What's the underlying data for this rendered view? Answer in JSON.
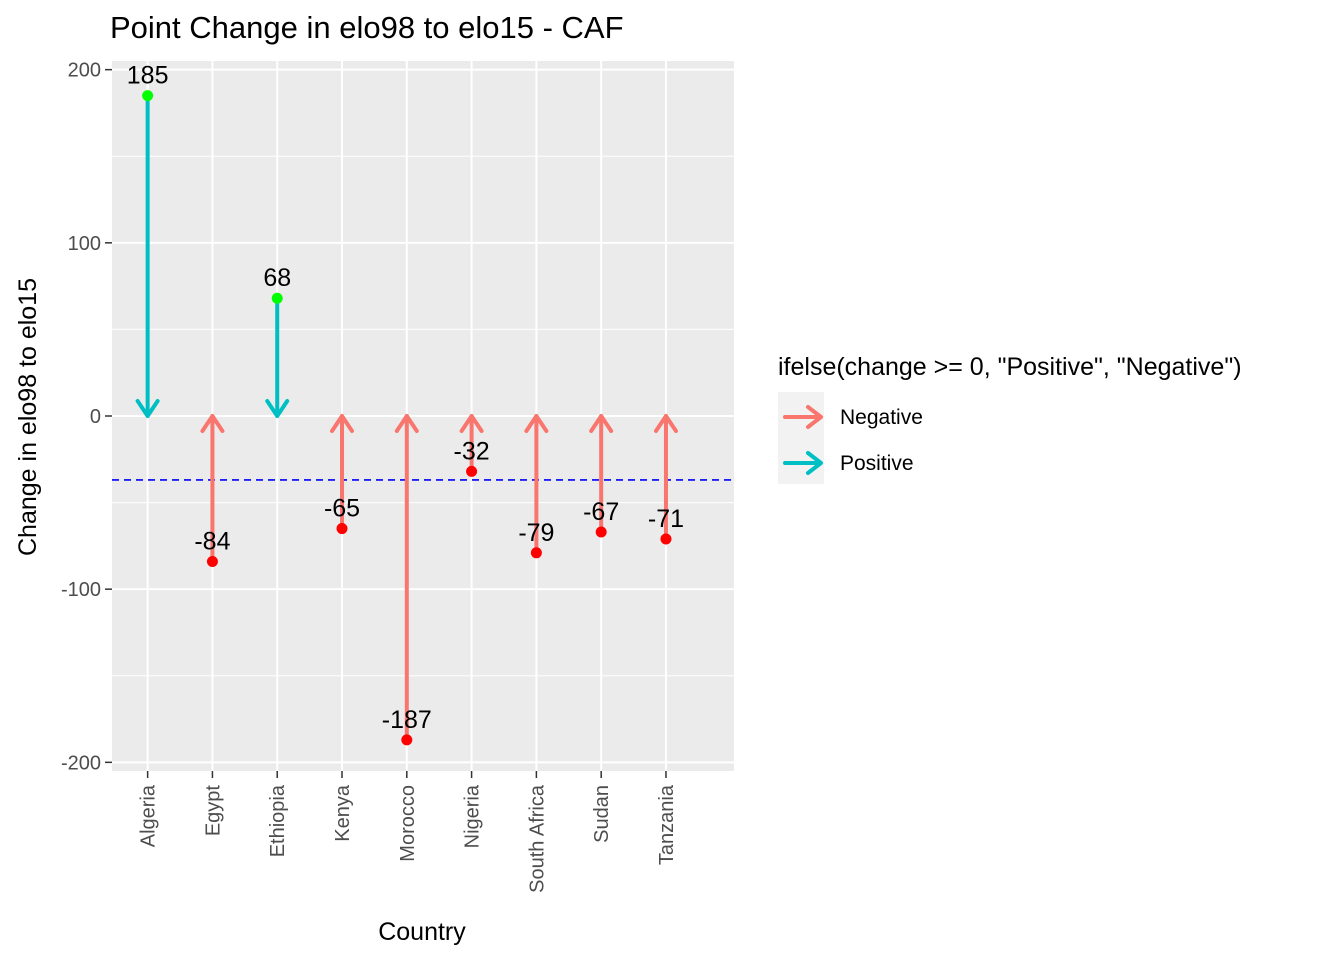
{
  "chart_data": {
    "type": "arrow-dot",
    "title": "Point Change in elo98 to elo15 - CAF",
    "xlabel": "Country",
    "ylabel": "Change in elo98 to elo15",
    "categories": [
      "Algeria",
      "Egypt",
      "Ethiopia",
      "Kenya",
      "Morocco",
      "Nigeria",
      "South Africa",
      "Sudan",
      "Tanzania"
    ],
    "values": [
      185,
      -84,
      68,
      -65,
      -187,
      -32,
      -79,
      -67,
      -71
    ],
    "labels": [
      "185",
      "-84",
      "68",
      "-65",
      "-187",
      "-32",
      "-79",
      "-67",
      "-71"
    ],
    "ylim": [
      -205,
      205
    ],
    "yticks": [
      200,
      100,
      0,
      -100,
      -200
    ],
    "ytick_labels": [
      "200",
      "100",
      "0",
      "-100",
      "-200"
    ],
    "reference_line": {
      "value": -36.9,
      "style": "dashed",
      "color": "#0000ff"
    },
    "grid": true,
    "panel_background": "#ebebeb",
    "legend": {
      "title": "ifelse(change >= 0, \"Positive\", \"Negative\")",
      "position": "right",
      "entries": [
        {
          "name": "Negative",
          "color": "#f8766d"
        },
        {
          "name": "Positive",
          "color": "#00bfc4"
        }
      ]
    },
    "point_colors": {
      "positive": "#00ff00",
      "negative": "#ff0000"
    }
  }
}
